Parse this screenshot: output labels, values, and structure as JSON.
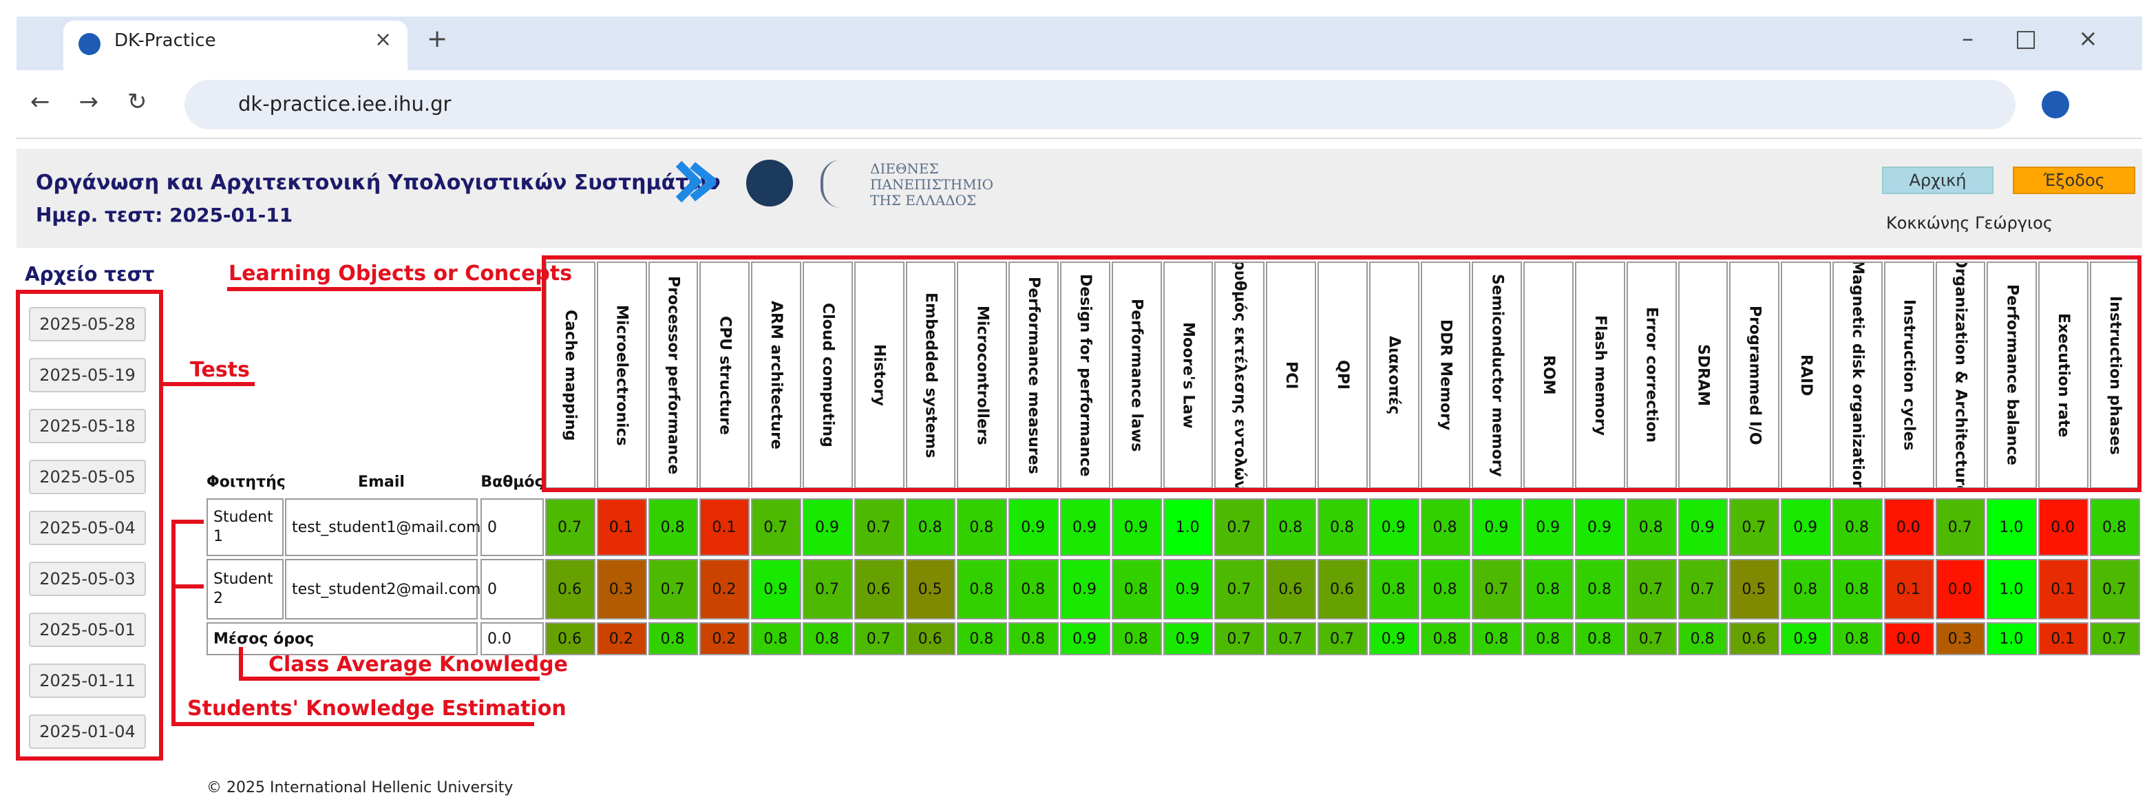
{
  "browser": {
    "tab_title": "DK-Practice",
    "url": "dk-practice.iee.ihu.gr"
  },
  "header": {
    "title": "Οργάνωση και Αρχιτεκτονική Υπολογιστικών Συστημάτων",
    "test_date": "Ημερ. τεστ: 2025-01-11",
    "logo_text": [
      "ΔΙΕΘΝΕΣ",
      "ΠΑΝΕΠΙΣΤΗΜΙΟ",
      "ΤΗΣ ΕΛΛΑΔΟΣ"
    ],
    "buttons": [
      "Αρχική",
      "Έξοδος"
    ],
    "user": "Κοκκώνης Γεώργιος"
  },
  "sidebar": {
    "title": "Αρχείο τεστ",
    "tests": [
      "2025-05-28",
      "2025-05-19",
      "2025-05-18",
      "2025-05-05",
      "2025-05-04",
      "2025-05-03",
      "2025-05-01",
      "2025-01-11",
      "2025-01-04"
    ]
  },
  "annotations": {
    "concepts": "Learning Objects or Concepts",
    "tests": "Tests",
    "class_average": "Class Average Knowledge",
    "students": "Students' Knowledge Estimation"
  },
  "table": {
    "headers": [
      "Φοιτητής",
      "Email",
      "Βαθμός"
    ],
    "concepts": [
      "Cache mapping",
      "Microelectronics",
      "Processor performance",
      "CPU structure",
      "ARM architecture",
      "Cloud computing",
      "History",
      "Embedded systems",
      "Microcontrollers",
      "Performance measures",
      "Design for performance",
      "Performance laws",
      "Moore's Law",
      "ρυθμός εκτέλεσης εντολών",
      "PCI",
      "QPI",
      "Διακοπές",
      "DDR Memory",
      "Semiconductor memory",
      "ROM",
      "Flash memory",
      "Error correction",
      "SDRAM",
      "Programmed I/O",
      "RAID",
      "Magnetic disk organization",
      "Instruction cycles",
      "Organization & Architecture",
      "Performance balance",
      "Execution rate",
      "Instruction phases"
    ],
    "rows": [
      {
        "student": "Student 1",
        "email": "test_student1@mail.com",
        "grade": "0",
        "values": [
          "0.7",
          "0.1",
          "0.8",
          "0.1",
          "0.7",
          "0.9",
          "0.7",
          "0.8",
          "0.8",
          "0.9",
          "0.9",
          "0.9",
          "1.0",
          "0.7",
          "0.8",
          "0.8",
          "0.9",
          "0.8",
          "0.9",
          "0.9",
          "0.9",
          "0.8",
          "0.9",
          "0.7",
          "0.9",
          "0.8",
          "0.0",
          "0.7",
          "1.0",
          "0.0",
          "0.8"
        ]
      },
      {
        "student": "Student 2",
        "email": "test_student2@mail.com",
        "grade": "0",
        "values": [
          "0.6",
          "0.3",
          "0.7",
          "0.2",
          "0.9",
          "0.7",
          "0.6",
          "0.5",
          "0.8",
          "0.8",
          "0.9",
          "0.8",
          "0.9",
          "0.7",
          "0.6",
          "0.6",
          "0.8",
          "0.8",
          "0.7",
          "0.8",
          "0.8",
          "0.7",
          "0.7",
          "0.5",
          "0.8",
          "0.8",
          "0.1",
          "0.0",
          "1.0",
          "0.1",
          "0.7"
        ]
      }
    ],
    "average": {
      "label": "Μέσος όρος",
      "grade": "0.0",
      "values": [
        "0.6",
        "0.2",
        "0.8",
        "0.2",
        "0.8",
        "0.8",
        "0.7",
        "0.6",
        "0.8",
        "0.8",
        "0.9",
        "0.8",
        "0.9",
        "0.7",
        "0.7",
        "0.7",
        "0.9",
        "0.8",
        "0.8",
        "0.8",
        "0.8",
        "0.7",
        "0.8",
        "0.6",
        "0.9",
        "0.8",
        "0.0",
        "0.3",
        "1.0",
        "0.1",
        "0.7"
      ]
    }
  },
  "footer": "© 2025 International Hellenic University"
}
